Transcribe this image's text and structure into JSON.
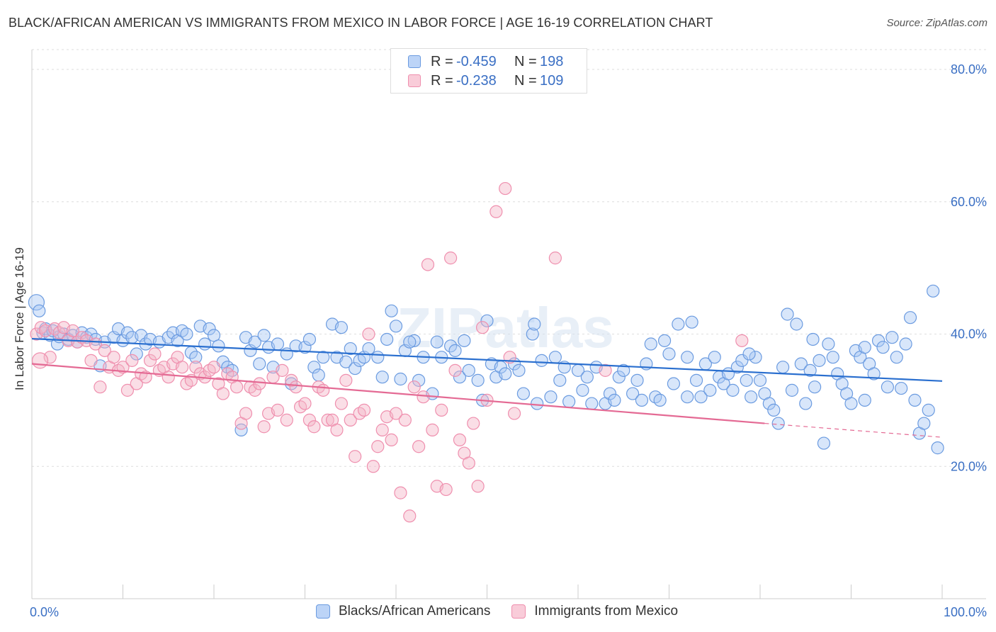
{
  "title": "BLACK/AFRICAN AMERICAN VS IMMIGRANTS FROM MEXICO IN LABOR FORCE | AGE 16-19 CORRELATION CHART",
  "source": "Source: ZipAtlas.com",
  "watermark": "ZIPatlas",
  "legend": {
    "rows": [
      {
        "r_label": "R =",
        "r_value": "-0.459",
        "n_label": "N =",
        "n_value": "198",
        "color": "#a9c8f5"
      },
      {
        "r_label": "R =",
        "r_value": "-0.238",
        "n_label": "N =",
        "n_value": "109",
        "color": "#f5b5c8"
      }
    ]
  },
  "chart_data": {
    "type": "scatter",
    "ylabel": "In Labor Force | Age 16-19",
    "xlim": [
      0,
      100
    ],
    "ylim": [
      0,
      83
    ],
    "x_tick_labels": [
      "0.0%",
      "100.0%"
    ],
    "y_ticks": [
      20,
      40,
      60,
      80
    ],
    "y_tick_labels": [
      "20.0%",
      "40.0%",
      "60.0%",
      "80.0%"
    ],
    "grid": true,
    "series": [
      {
        "name": "Blacks/African Americans",
        "color": "#6b9be0",
        "fill": "#a9c8f5",
        "trend": {
          "x0": 0,
          "y0": 39.3,
          "x1": 100,
          "y1": 32.9,
          "color": "#2a6fcf"
        },
        "points": [
          [
            0.5,
            44.8
          ],
          [
            0.8,
            43.5
          ],
          [
            1.2,
            40.2
          ],
          [
            1.5,
            40.8
          ],
          [
            2.0,
            39.8
          ],
          [
            2.3,
            40.5
          ],
          [
            2.8,
            38.5
          ],
          [
            3.0,
            39.6
          ],
          [
            3.5,
            40.0
          ],
          [
            4.0,
            39.2
          ],
          [
            4.5,
            39.8
          ],
          [
            5.0,
            38.8
          ],
          [
            5.5,
            40.2
          ],
          [
            6.0,
            39.5
          ],
          [
            6.5,
            40.0
          ],
          [
            7.0,
            39.2
          ],
          [
            7.5,
            35.2
          ],
          [
            8.0,
            38.8
          ],
          [
            9.0,
            39.5
          ],
          [
            9.5,
            40.8
          ],
          [
            10.0,
            39.0
          ],
          [
            10.5,
            40.2
          ],
          [
            11.0,
            39.5
          ],
          [
            11.5,
            37.0
          ],
          [
            12.0,
            39.8
          ],
          [
            12.5,
            38.5
          ],
          [
            13.0,
            39.2
          ],
          [
            14.0,
            38.8
          ],
          [
            15.0,
            39.5
          ],
          [
            15.5,
            40.2
          ],
          [
            16.0,
            39.0
          ],
          [
            16.5,
            40.5
          ],
          [
            17.0,
            40.0
          ],
          [
            17.5,
            37.2
          ],
          [
            18.0,
            36.5
          ],
          [
            18.5,
            41.2
          ],
          [
            19.0,
            38.5
          ],
          [
            19.5,
            40.8
          ],
          [
            20.0,
            39.8
          ],
          [
            20.5,
            38.2
          ],
          [
            21.0,
            35.8
          ],
          [
            21.5,
            35.0
          ],
          [
            22.0,
            34.5
          ],
          [
            23.0,
            25.5
          ],
          [
            23.5,
            39.5
          ],
          [
            24.0,
            37.5
          ],
          [
            24.5,
            38.8
          ],
          [
            25.0,
            35.5
          ],
          [
            25.5,
            39.8
          ],
          [
            26.0,
            38.0
          ],
          [
            26.5,
            35.0
          ],
          [
            27.0,
            38.5
          ],
          [
            28.0,
            37.0
          ],
          [
            28.5,
            32.5
          ],
          [
            29.0,
            38.2
          ],
          [
            30.0,
            38.0
          ],
          [
            30.5,
            39.2
          ],
          [
            31.0,
            35.0
          ],
          [
            31.5,
            33.8
          ],
          [
            32.0,
            36.5
          ],
          [
            33.0,
            41.5
          ],
          [
            33.5,
            36.5
          ],
          [
            34.0,
            41.0
          ],
          [
            34.5,
            35.8
          ],
          [
            35.0,
            37.8
          ],
          [
            35.5,
            34.8
          ],
          [
            36.0,
            36.0
          ],
          [
            36.5,
            36.5
          ],
          [
            37.0,
            37.8
          ],
          [
            38.0,
            36.5
          ],
          [
            38.5,
            33.5
          ],
          [
            39.0,
            39.2
          ],
          [
            39.5,
            43.5
          ],
          [
            40.0,
            41.2
          ],
          [
            40.5,
            33.2
          ],
          [
            41.0,
            37.5
          ],
          [
            42.0,
            39.0
          ],
          [
            42.5,
            33.0
          ],
          [
            43.0,
            36.5
          ],
          [
            44.0,
            31.0
          ],
          [
            44.5,
            38.8
          ],
          [
            45.0,
            36.5
          ],
          [
            46.0,
            38.2
          ],
          [
            46.5,
            37.5
          ],
          [
            47.0,
            33.5
          ],
          [
            47.5,
            39.0
          ],
          [
            48.0,
            34.5
          ],
          [
            49.0,
            33.0
          ],
          [
            49.5,
            30.0
          ],
          [
            50.0,
            42.0
          ],
          [
            50.5,
            35.5
          ],
          [
            51.0,
            33.5
          ],
          [
            51.5,
            35.0
          ],
          [
            52.0,
            34.0
          ],
          [
            53.0,
            35.5
          ],
          [
            53.5,
            34.5
          ],
          [
            54.0,
            31.0
          ],
          [
            55.0,
            40.0
          ],
          [
            55.5,
            29.5
          ],
          [
            56.0,
            36.0
          ],
          [
            57.0,
            30.5
          ],
          [
            57.5,
            36.5
          ],
          [
            58.0,
            33.0
          ],
          [
            58.5,
            35.0
          ],
          [
            59.0,
            29.8
          ],
          [
            60.0,
            34.5
          ],
          [
            60.5,
            31.5
          ],
          [
            61.0,
            33.5
          ],
          [
            61.5,
            29.5
          ],
          [
            62.0,
            35.0
          ],
          [
            63.0,
            29.5
          ],
          [
            63.5,
            31.0
          ],
          [
            64.0,
            30.0
          ],
          [
            64.5,
            33.5
          ],
          [
            65.0,
            34.5
          ],
          [
            66.0,
            31.0
          ],
          [
            66.5,
            33.0
          ],
          [
            67.0,
            30.0
          ],
          [
            67.5,
            35.5
          ],
          [
            68.0,
            38.5
          ],
          [
            68.5,
            30.5
          ],
          [
            69.0,
            30.0
          ],
          [
            69.5,
            39.0
          ],
          [
            70.0,
            37.0
          ],
          [
            70.5,
            32.5
          ],
          [
            71.0,
            41.5
          ],
          [
            72.0,
            30.5
          ],
          [
            72.5,
            41.8
          ],
          [
            73.0,
            33.0
          ],
          [
            73.5,
            30.5
          ],
          [
            74.0,
            35.5
          ],
          [
            74.5,
            31.5
          ],
          [
            75.0,
            36.5
          ],
          [
            75.5,
            33.5
          ],
          [
            76.0,
            32.5
          ],
          [
            76.5,
            34.0
          ],
          [
            77.0,
            31.5
          ],
          [
            77.5,
            35.0
          ],
          [
            78.0,
            36.0
          ],
          [
            78.5,
            33.0
          ],
          [
            79.0,
            30.5
          ],
          [
            79.5,
            36.5
          ],
          [
            80.0,
            33.0
          ],
          [
            80.5,
            31.0
          ],
          [
            81.0,
            29.5
          ],
          [
            81.5,
            28.5
          ],
          [
            82.0,
            26.5
          ],
          [
            82.5,
            35.0
          ],
          [
            83.0,
            43.0
          ],
          [
            83.5,
            31.5
          ],
          [
            84.0,
            41.5
          ],
          [
            84.5,
            35.5
          ],
          [
            85.0,
            29.5
          ],
          [
            85.5,
            34.5
          ],
          [
            86.0,
            32.0
          ],
          [
            86.5,
            36.0
          ],
          [
            87.0,
            23.5
          ],
          [
            87.5,
            38.5
          ],
          [
            88.0,
            36.5
          ],
          [
            88.5,
            34.0
          ],
          [
            89.0,
            32.5
          ],
          [
            89.5,
            31.0
          ],
          [
            90.0,
            29.5
          ],
          [
            90.5,
            37.5
          ],
          [
            91.0,
            36.5
          ],
          [
            91.5,
            30.0
          ],
          [
            92.0,
            35.5
          ],
          [
            92.5,
            34.0
          ],
          [
            93.0,
            39.0
          ],
          [
            93.5,
            38.0
          ],
          [
            94.0,
            32.0
          ],
          [
            94.5,
            39.5
          ],
          [
            95.0,
            36.5
          ],
          [
            95.5,
            31.8
          ],
          [
            96.0,
            38.5
          ],
          [
            96.5,
            42.5
          ],
          [
            97.0,
            30.0
          ],
          [
            97.5,
            25.0
          ],
          [
            98.0,
            26.5
          ],
          [
            98.5,
            28.5
          ],
          [
            99.0,
            46.5
          ],
          [
            99.5,
            22.8
          ],
          [
            91.5,
            38.0
          ],
          [
            85.8,
            39.2
          ],
          [
            78.8,
            37.0
          ],
          [
            72.0,
            36.5
          ],
          [
            55.2,
            41.5
          ],
          [
            41.5,
            38.8
          ]
        ]
      },
      {
        "name": "Immigrants from Mexico",
        "color": "#ef8fae",
        "fill": "#f5b5c8",
        "trend": {
          "x0": 0,
          "y0": 35.5,
          "x1": 80.5,
          "y1": 26.5,
          "x2": 100,
          "y2": 24.4,
          "color": "#e46a94"
        },
        "points": [
          [
            0.5,
            40.0
          ],
          [
            1.0,
            41.0
          ],
          [
            1.5,
            40.5
          ],
          [
            2.0,
            36.5
          ],
          [
            2.5,
            40.8
          ],
          [
            3.0,
            40.2
          ],
          [
            3.5,
            41.0
          ],
          [
            4.0,
            39.0
          ],
          [
            4.5,
            40.5
          ],
          [
            5.0,
            38.8
          ],
          [
            5.5,
            39.5
          ],
          [
            6.0,
            39.0
          ],
          [
            6.5,
            36.0
          ],
          [
            7.0,
            38.5
          ],
          [
            7.5,
            32.0
          ],
          [
            8.0,
            37.5
          ],
          [
            8.5,
            35.0
          ],
          [
            9.0,
            36.5
          ],
          [
            9.5,
            34.5
          ],
          [
            10.0,
            35.0
          ],
          [
            10.5,
            31.5
          ],
          [
            11.0,
            36.0
          ],
          [
            11.5,
            32.5
          ],
          [
            12.0,
            34.0
          ],
          [
            12.5,
            33.5
          ],
          [
            13.0,
            36.0
          ],
          [
            13.5,
            37.0
          ],
          [
            14.0,
            34.5
          ],
          [
            14.5,
            35.0
          ],
          [
            15.0,
            33.5
          ],
          [
            15.5,
            35.5
          ],
          [
            16.0,
            36.5
          ],
          [
            16.5,
            35.0
          ],
          [
            17.0,
            32.5
          ],
          [
            17.5,
            33.0
          ],
          [
            18.0,
            35.0
          ],
          [
            18.5,
            34.0
          ],
          [
            19.0,
            33.5
          ],
          [
            19.5,
            34.5
          ],
          [
            20.0,
            35.0
          ],
          [
            20.5,
            32.5
          ],
          [
            21.0,
            31.0
          ],
          [
            21.5,
            34.0
          ],
          [
            22.0,
            33.5
          ],
          [
            22.5,
            32.0
          ],
          [
            23.0,
            26.5
          ],
          [
            23.5,
            28.0
          ],
          [
            24.0,
            32.0
          ],
          [
            24.5,
            31.5
          ],
          [
            25.0,
            32.5
          ],
          [
            25.5,
            26.0
          ],
          [
            26.0,
            28.0
          ],
          [
            26.5,
            33.5
          ],
          [
            27.0,
            28.5
          ],
          [
            27.5,
            34.5
          ],
          [
            28.0,
            27.0
          ],
          [
            28.5,
            33.0
          ],
          [
            29.0,
            32.0
          ],
          [
            29.5,
            29.0
          ],
          [
            30.0,
            29.5
          ],
          [
            30.5,
            27.0
          ],
          [
            31.0,
            26.0
          ],
          [
            31.5,
            32.0
          ],
          [
            32.0,
            31.5
          ],
          [
            32.5,
            27.0
          ],
          [
            33.0,
            27.0
          ],
          [
            33.5,
            25.5
          ],
          [
            34.0,
            29.5
          ],
          [
            34.5,
            33.0
          ],
          [
            35.0,
            27.0
          ],
          [
            35.5,
            21.5
          ],
          [
            36.0,
            28.0
          ],
          [
            36.5,
            28.5
          ],
          [
            37.0,
            40.0
          ],
          [
            37.5,
            20.0
          ],
          [
            38.0,
            23.0
          ],
          [
            38.5,
            25.5
          ],
          [
            39.0,
            27.5
          ],
          [
            39.5,
            24.0
          ],
          [
            40.0,
            28.0
          ],
          [
            40.5,
            16.0
          ],
          [
            41.0,
            27.0
          ],
          [
            41.5,
            12.5
          ],
          [
            42.0,
            32.0
          ],
          [
            42.5,
            23.0
          ],
          [
            43.0,
            30.5
          ],
          [
            43.5,
            50.5
          ],
          [
            44.0,
            25.5
          ],
          [
            44.5,
            17.0
          ],
          [
            45.0,
            28.5
          ],
          [
            45.5,
            16.5
          ],
          [
            46.0,
            51.5
          ],
          [
            46.5,
            34.5
          ],
          [
            47.0,
            24.0
          ],
          [
            47.5,
            22.0
          ],
          [
            48.0,
            20.5
          ],
          [
            48.5,
            26.5
          ],
          [
            49.0,
            17.0
          ],
          [
            49.5,
            41.0
          ],
          [
            50.0,
            30.0
          ],
          [
            51.0,
            58.5
          ],
          [
            52.0,
            62.0
          ],
          [
            52.5,
            36.5
          ],
          [
            53.0,
            28.0
          ],
          [
            57.5,
            51.5
          ],
          [
            63.0,
            34.5
          ],
          [
            78.0,
            39.0
          ],
          [
            0.9,
            36.0
          ]
        ]
      }
    ]
  }
}
